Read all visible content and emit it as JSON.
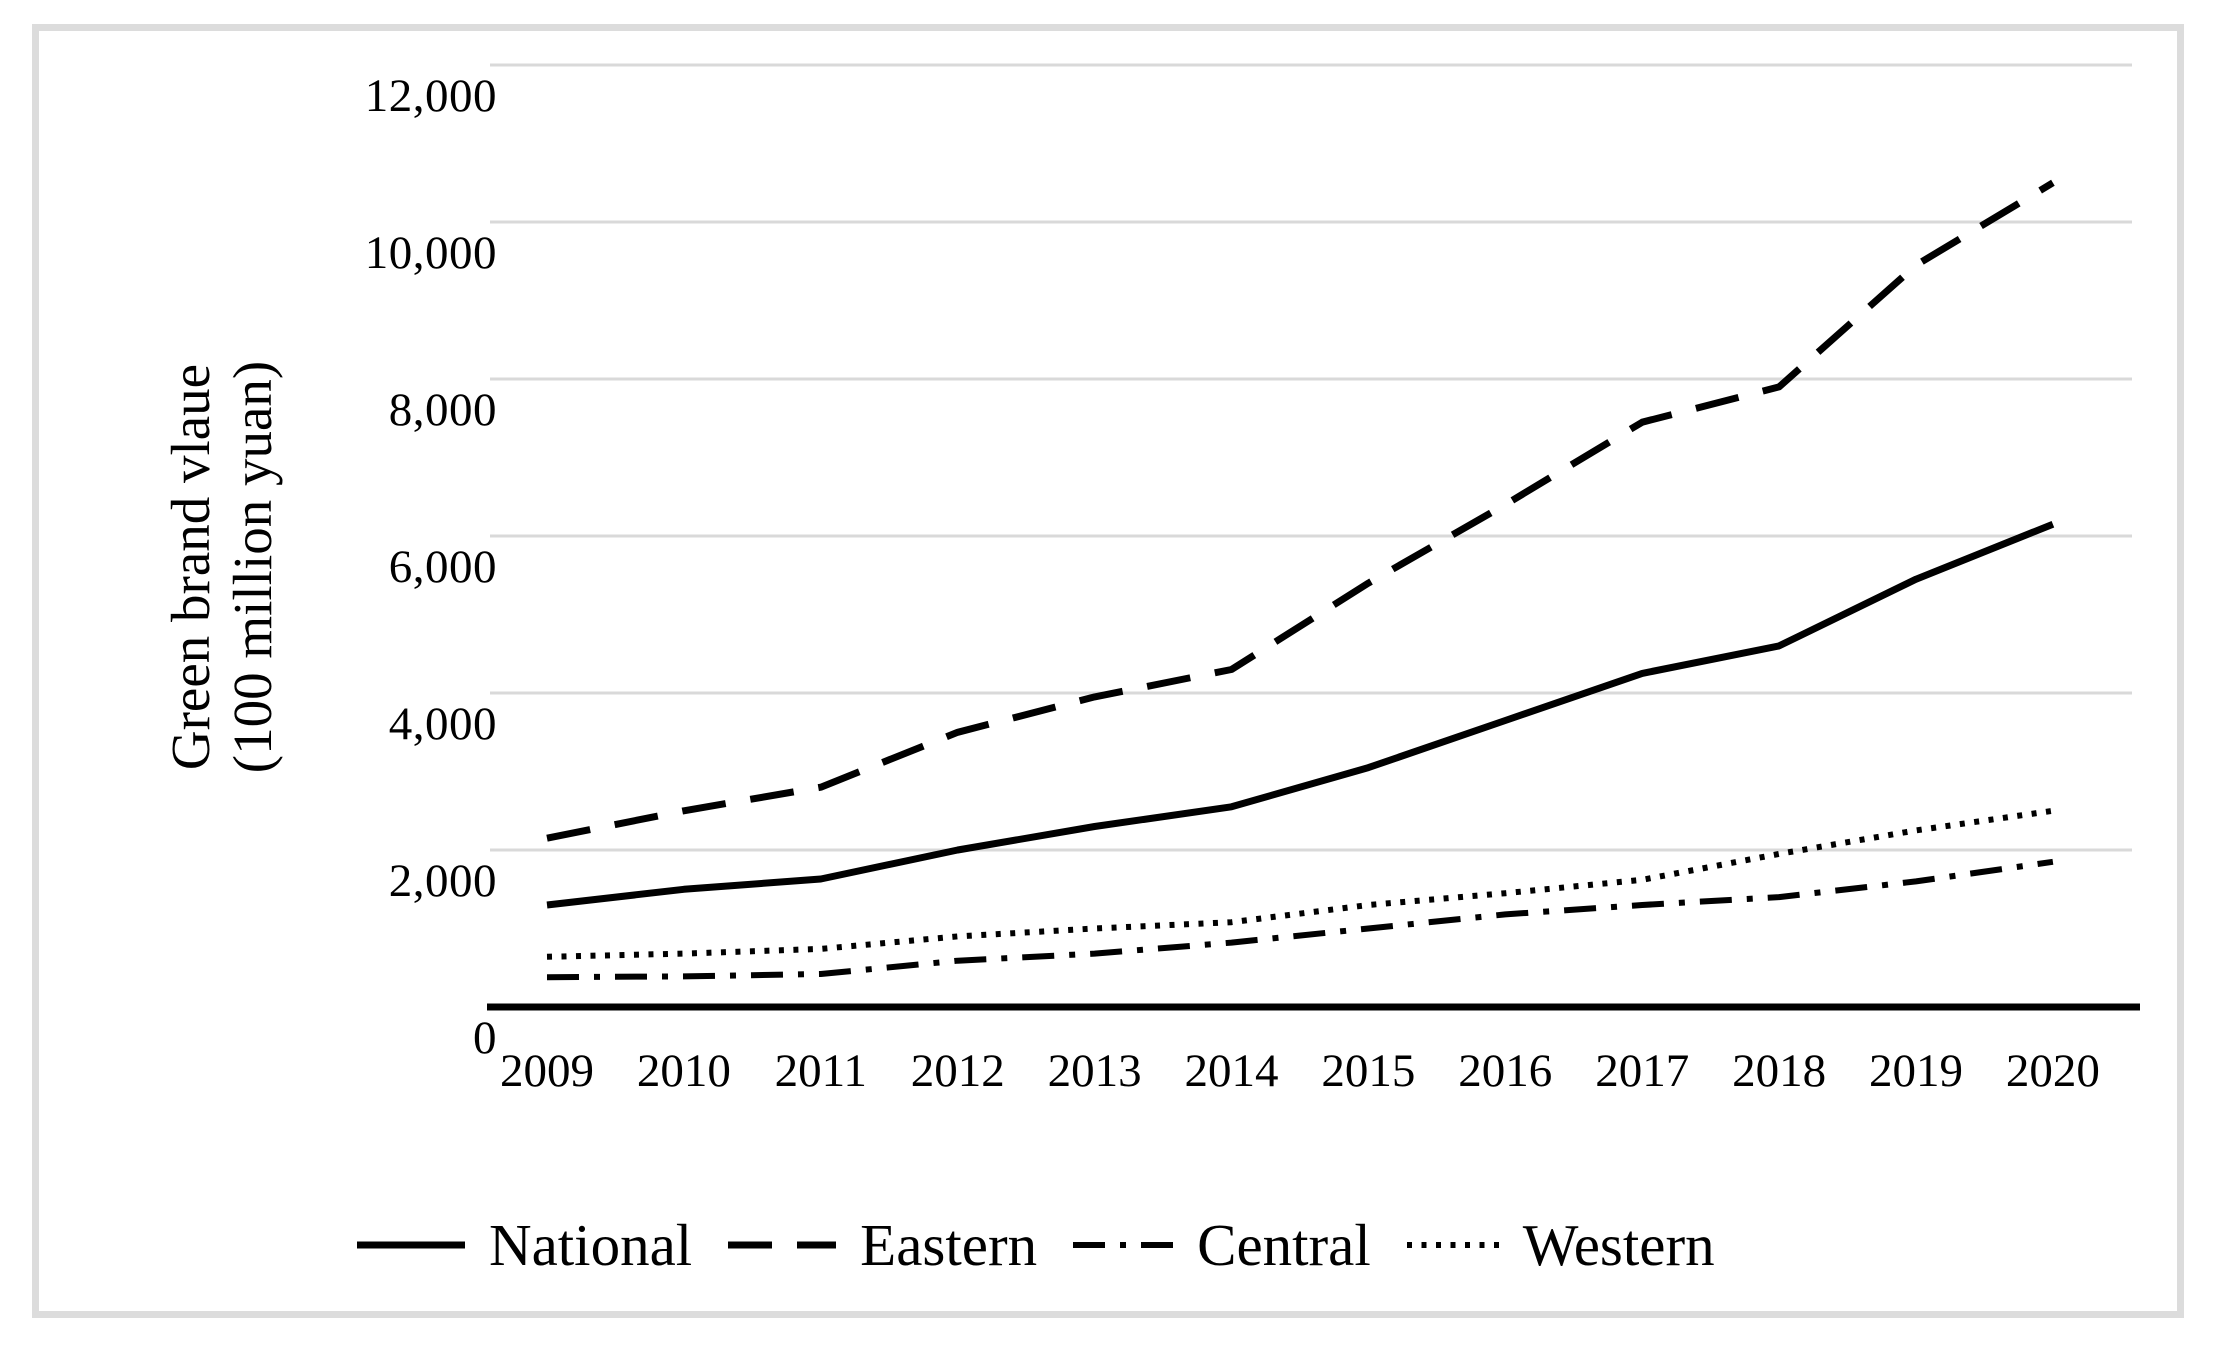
{
  "chart_data": {
    "type": "line",
    "title": "",
    "xlabel": "",
    "ylabel": "Green brand vlaue (100 million yuan)",
    "ylabel_lines": [
      "Green brand vlaue",
      "(100 million yuan)"
    ],
    "unit": "100 million yuan",
    "categories": [
      "2009",
      "2010",
      "2011",
      "2012",
      "2013",
      "2014",
      "2015",
      "2016",
      "2017",
      "2018",
      "2019",
      "2020"
    ],
    "ylim": [
      0,
      12000
    ],
    "grid": "horizontal-gridlines",
    "legend_position": "bottom",
    "yticks": [
      {
        "value": 0,
        "label": "0"
      },
      {
        "value": 2000,
        "label": "2,000"
      },
      {
        "value": 4000,
        "label": "4,000"
      },
      {
        "value": 6000,
        "label": "6,000"
      },
      {
        "value": 8000,
        "label": "8,000"
      },
      {
        "value": 10000,
        "label": "10,000"
      },
      {
        "value": 12000,
        "label": "12,000"
      }
    ],
    "series": [
      {
        "name": "National",
        "line_style": "solid",
        "stroke_width": 7,
        "values": [
          1300,
          1500,
          1630,
          2000,
          2300,
          2550,
          3050,
          3650,
          4250,
          4600,
          5450,
          6150
        ]
      },
      {
        "name": "Eastern",
        "line_style": "dashed",
        "stroke_width": 7,
        "values": [
          2150,
          2500,
          2800,
          3500,
          3950,
          4300,
          5400,
          6400,
          7450,
          7900,
          9450,
          10500
        ]
      },
      {
        "name": "Central",
        "line_style": "dashdot",
        "stroke_width": 6,
        "values": [
          380,
          390,
          420,
          590,
          680,
          820,
          1000,
          1180,
          1300,
          1400,
          1600,
          1850
        ]
      },
      {
        "name": "Western",
        "line_style": "dotted",
        "stroke_width": 6,
        "values": [
          640,
          680,
          740,
          900,
          1000,
          1080,
          1300,
          1450,
          1620,
          1950,
          2250,
          2500
        ]
      }
    ]
  },
  "colors": {
    "line": "#000000",
    "gridline": "#d9d9d9",
    "axis": "#000000",
    "frame": "#dcdcdc",
    "background": "#ffffff"
  }
}
